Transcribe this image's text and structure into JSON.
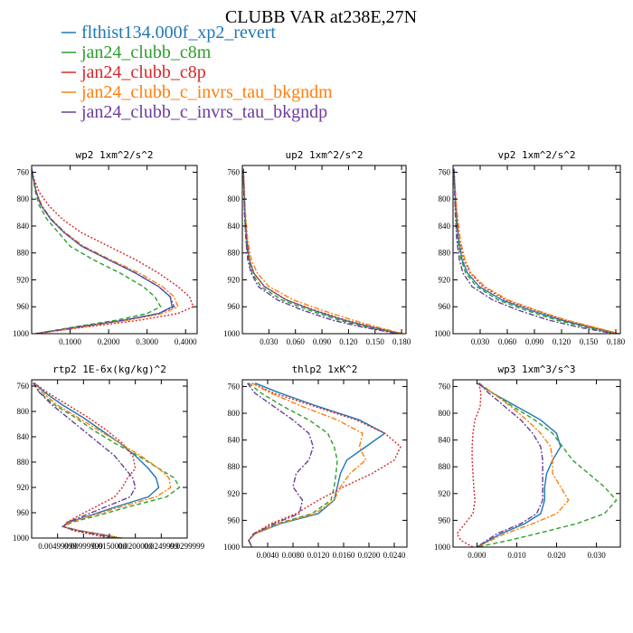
{
  "figure": {
    "title": "CLUBB VAR at238E,27N"
  },
  "legend": [
    {
      "label": "flthist134.000f_xp2_revert",
      "color": "#1f77b4"
    },
    {
      "label": "jan24_clubb_c8m",
      "color": "#2ca02c"
    },
    {
      "label": "jan24_clubb_c8p",
      "color": "#d62728"
    },
    {
      "label": "jan24_clubb_c_invrs_tau_bkgndm",
      "color": "#ff7f0e"
    },
    {
      "label": "jan24_clubb_c_invrs_tau_bkgndp",
      "color": "#6a3d9a"
    }
  ],
  "chart_data": [
    {
      "type": "line",
      "title": "wp2  1xm^2/s^2",
      "xlim": [
        0,
        0.43
      ],
      "ylim": [
        1000,
        750
      ],
      "xticks": [
        0.1,
        0.2,
        0.3,
        0.4
      ],
      "xtick_labels": [
        "0.1000",
        "0.2000",
        "0.3000",
        "0.4000"
      ],
      "yticks": [
        760,
        800,
        840,
        880,
        920,
        960,
        1000
      ],
      "y": [
        755,
        770,
        790,
        810,
        830,
        850,
        870,
        890,
        910,
        930,
        945,
        960,
        970,
        980,
        990,
        1000
      ],
      "series": [
        {
          "color": "#1f77b4",
          "dash": "solid",
          "values": [
            0,
            0.005,
            0.012,
            0.025,
            0.05,
            0.085,
            0.13,
            0.2,
            0.27,
            0.33,
            0.36,
            0.365,
            0.33,
            0.24,
            0.12,
            0.01
          ]
        },
        {
          "color": "#2ca02c",
          "dash": "dash",
          "values": [
            0,
            0.004,
            0.01,
            0.02,
            0.04,
            0.07,
            0.1,
            0.16,
            0.23,
            0.29,
            0.32,
            0.335,
            0.3,
            0.22,
            0.11,
            0.01
          ]
        },
        {
          "color": "#d62728",
          "dash": "dot",
          "values": [
            0,
            0.006,
            0.02,
            0.045,
            0.08,
            0.13,
            0.2,
            0.27,
            0.33,
            0.38,
            0.41,
            0.42,
            0.38,
            0.28,
            0.14,
            0.01
          ]
        },
        {
          "color": "#ff7f0e",
          "dash": "dashdot",
          "values": [
            0,
            0.005,
            0.013,
            0.027,
            0.052,
            0.088,
            0.135,
            0.205,
            0.28,
            0.34,
            0.37,
            0.38,
            0.34,
            0.25,
            0.13,
            0.01
          ]
        },
        {
          "color": "#6a3d9a",
          "dash": "dashdot",
          "values": [
            0,
            0.005,
            0.012,
            0.025,
            0.05,
            0.085,
            0.13,
            0.2,
            0.27,
            0.33,
            0.36,
            0.37,
            0.33,
            0.24,
            0.12,
            0.01
          ]
        }
      ]
    },
    {
      "type": "line",
      "title": "up2  1xm^2/s^2",
      "xlim": [
        0,
        0.185
      ],
      "ylim": [
        1000,
        750
      ],
      "xticks": [
        0.03,
        0.06,
        0.09,
        0.12,
        0.15,
        0.18
      ],
      "xtick_labels": [
        "0.030",
        "0.060",
        "0.090",
        "0.120",
        "0.150",
        "0.180"
      ],
      "yticks": [
        760,
        800,
        840,
        880,
        920,
        960,
        1000
      ],
      "y": [
        755,
        780,
        820,
        860,
        890,
        910,
        930,
        950,
        965,
        980,
        990,
        1000
      ],
      "series": [
        {
          "color": "#1f77b4",
          "dash": "solid",
          "values": [
            0.001,
            0.002,
            0.003,
            0.005,
            0.008,
            0.013,
            0.025,
            0.05,
            0.08,
            0.115,
            0.145,
            0.18
          ]
        },
        {
          "color": "#2ca02c",
          "dash": "dash",
          "values": [
            0.001,
            0.0015,
            0.0025,
            0.004,
            0.007,
            0.011,
            0.021,
            0.045,
            0.075,
            0.11,
            0.14,
            0.178
          ]
        },
        {
          "color": "#d62728",
          "dash": "dot",
          "values": [
            0.001,
            0.002,
            0.003,
            0.005,
            0.008,
            0.013,
            0.025,
            0.05,
            0.082,
            0.117,
            0.147,
            0.18
          ]
        },
        {
          "color": "#ff7f0e",
          "dash": "dashdot",
          "values": [
            0.001,
            0.002,
            0.0035,
            0.006,
            0.01,
            0.017,
            0.03,
            0.058,
            0.09,
            0.125,
            0.152,
            0.182
          ]
        },
        {
          "color": "#6a3d9a",
          "dash": "dashdot",
          "values": [
            0.001,
            0.0015,
            0.0025,
            0.004,
            0.006,
            0.01,
            0.018,
            0.04,
            0.068,
            0.102,
            0.135,
            0.176
          ]
        }
      ]
    },
    {
      "type": "line",
      "title": "vp2  1xm^2/s^2",
      "xlim": [
        0,
        0.185
      ],
      "ylim": [
        1000,
        750
      ],
      "xticks": [
        0.03,
        0.06,
        0.09,
        0.12,
        0.15,
        0.18
      ],
      "xtick_labels": [
        "0.030",
        "0.060",
        "0.090",
        "0.120",
        "0.150",
        "0.180"
      ],
      "yticks": [
        760,
        800,
        840,
        880,
        920,
        960,
        1000
      ],
      "y": [
        755,
        780,
        820,
        860,
        890,
        910,
        930,
        950,
        965,
        980,
        990,
        1000
      ],
      "series": [
        {
          "color": "#1f77b4",
          "dash": "solid",
          "values": [
            0.001,
            0.002,
            0.0035,
            0.006,
            0.01,
            0.016,
            0.029,
            0.054,
            0.085,
            0.12,
            0.15,
            0.182
          ]
        },
        {
          "color": "#2ca02c",
          "dash": "dash",
          "values": [
            0.001,
            0.0015,
            0.003,
            0.005,
            0.009,
            0.014,
            0.026,
            0.05,
            0.08,
            0.115,
            0.146,
            0.18
          ]
        },
        {
          "color": "#d62728",
          "dash": "dot",
          "values": [
            0.001,
            0.002,
            0.004,
            0.007,
            0.012,
            0.019,
            0.033,
            0.058,
            0.09,
            0.124,
            0.153,
            0.183
          ]
        },
        {
          "color": "#ff7f0e",
          "dash": "dashdot",
          "values": [
            0.001,
            0.002,
            0.0045,
            0.008,
            0.013,
            0.02,
            0.035,
            0.061,
            0.092,
            0.126,
            0.155,
            0.184
          ]
        },
        {
          "color": "#6a3d9a",
          "dash": "dashdot",
          "values": [
            0.001,
            0.0015,
            0.0025,
            0.004,
            0.007,
            0.011,
            0.021,
            0.044,
            0.072,
            0.106,
            0.138,
            0.178
          ]
        }
      ]
    },
    {
      "type": "line",
      "title": "rtp2  1E-6x(kg/kg)^2",
      "xlim": [
        0,
        0.03
      ],
      "ylim": [
        1000,
        750
      ],
      "xticks": [
        0.005,
        0.01,
        0.015,
        0.02,
        0.025,
        0.03
      ],
      "xtick_labels": [
        "0.00499999",
        "0.00999999",
        "0.0150000",
        "0.0200000",
        "0.0249999",
        "0.0299999"
      ],
      "yticks": [
        760,
        800,
        840,
        880,
        920,
        960,
        1000
      ],
      "y": [
        755,
        770,
        790,
        810,
        830,
        850,
        870,
        890,
        905,
        920,
        935,
        950,
        965,
        975,
        982,
        988,
        995,
        1000
      ],
      "series": [
        {
          "color": "#1f77b4",
          "dash": "solid",
          "values": [
            0.0005,
            0.0025,
            0.006,
            0.01,
            0.0135,
            0.017,
            0.02,
            0.0225,
            0.024,
            0.0245,
            0.0225,
            0.0165,
            0.011,
            0.0072,
            0.006,
            0.009,
            0.014,
            0.017
          ]
        },
        {
          "color": "#2ca02c",
          "dash": "dash",
          "values": [
            0.0003,
            0.0015,
            0.0045,
            0.0085,
            0.012,
            0.016,
            0.0205,
            0.0245,
            0.0275,
            0.0285,
            0.026,
            0.019,
            0.0125,
            0.0078,
            0.0062,
            0.009,
            0.014,
            0.017
          ]
        },
        {
          "color": "#d62728",
          "dash": "dot",
          "values": [
            0.0005,
            0.003,
            0.007,
            0.011,
            0.0145,
            0.0175,
            0.0195,
            0.02,
            0.0185,
            0.0175,
            0.016,
            0.0125,
            0.009,
            0.0068,
            0.0062,
            0.008,
            0.012,
            0.015
          ]
        },
        {
          "color": "#ff7f0e",
          "dash": "dashdot",
          "values": [
            0.0004,
            0.002,
            0.005,
            0.009,
            0.013,
            0.017,
            0.021,
            0.0245,
            0.0265,
            0.0268,
            0.024,
            0.0175,
            0.0115,
            0.0074,
            0.0061,
            0.009,
            0.014,
            0.0175
          ]
        },
        {
          "color": "#6a3d9a",
          "dash": "dashdot",
          "values": [
            0.0003,
            0.0015,
            0.004,
            0.007,
            0.01,
            0.013,
            0.016,
            0.018,
            0.0195,
            0.02,
            0.019,
            0.0145,
            0.01,
            0.007,
            0.006,
            0.0085,
            0.013,
            0.016
          ]
        }
      ]
    },
    {
      "type": "line",
      "title": "thlp2  1xK^2",
      "xlim": [
        0,
        0.026
      ],
      "ylim": [
        1000,
        750
      ],
      "xticks": [
        0.004,
        0.008,
        0.012,
        0.016,
        0.02,
        0.024
      ],
      "xtick_labels": [
        "0.0040",
        "0.0080",
        "0.0120",
        "0.0160",
        "0.0200",
        "0.0240"
      ],
      "yticks": [
        760,
        800,
        840,
        880,
        920,
        960,
        1000
      ],
      "y": [
        755,
        770,
        790,
        810,
        830,
        850,
        870,
        890,
        910,
        930,
        950,
        965,
        980,
        990,
        1000
      ],
      "series": [
        {
          "color": "#1f77b4",
          "dash": "solid",
          "values": [
            0.002,
            0.006,
            0.012,
            0.0185,
            0.0225,
            0.0195,
            0.0165,
            0.0155,
            0.015,
            0.0145,
            0.012,
            0.006,
            0.002,
            0.001,
            0.0015
          ]
        },
        {
          "color": "#2ca02c",
          "dash": "dash",
          "values": [
            0.001,
            0.003,
            0.0065,
            0.0105,
            0.0135,
            0.0145,
            0.015,
            0.0148,
            0.0145,
            0.014,
            0.011,
            0.0055,
            0.002,
            0.001,
            0.0015
          ]
        },
        {
          "color": "#d62728",
          "dash": "dot",
          "values": [
            0.0015,
            0.005,
            0.0115,
            0.018,
            0.0225,
            0.025,
            0.024,
            0.0205,
            0.016,
            0.012,
            0.0085,
            0.0045,
            0.0018,
            0.001,
            0.0015
          ]
        },
        {
          "color": "#ff7f0e",
          "dash": "dashdot",
          "values": [
            0.0015,
            0.0045,
            0.0095,
            0.015,
            0.019,
            0.0185,
            0.0195,
            0.017,
            0.0155,
            0.0145,
            0.0115,
            0.0058,
            0.002,
            0.001,
            0.0015
          ]
        },
        {
          "color": "#6a3d9a",
          "dash": "dashdot",
          "values": [
            0.0008,
            0.002,
            0.005,
            0.008,
            0.0105,
            0.0112,
            0.0105,
            0.0085,
            0.008,
            0.0095,
            0.009,
            0.005,
            0.0018,
            0.001,
            0.0015
          ]
        }
      ]
    },
    {
      "type": "line",
      "title": "wp3  1xm^3/s^3",
      "xlim": [
        -0.006,
        0.036
      ],
      "ylim": [
        1000,
        750
      ],
      "xticks": [
        0,
        0.01,
        0.02,
        0.03
      ],
      "xtick_labels": [
        "0.000",
        "0.010",
        "0.020",
        "0.030"
      ],
      "yticks": [
        760,
        800,
        840,
        880,
        920,
        960,
        1000
      ],
      "y": [
        755,
        770,
        790,
        810,
        830,
        850,
        870,
        890,
        910,
        930,
        950,
        965,
        980,
        990,
        1000
      ],
      "series": [
        {
          "color": "#1f77b4",
          "dash": "solid",
          "values": [
            0,
            0.004,
            0.01,
            0.016,
            0.02,
            0.021,
            0.019,
            0.0175,
            0.017,
            0.017,
            0.016,
            0.012,
            0.006,
            0.003,
            0
          ]
        },
        {
          "color": "#2ca02c",
          "dash": "dash",
          "values": [
            0.0005,
            0.004,
            0.009,
            0.0145,
            0.019,
            0.0215,
            0.024,
            0.028,
            0.032,
            0.035,
            0.032,
            0.025,
            0.015,
            0.008,
            0
          ]
        },
        {
          "color": "#d62728",
          "dash": "dot",
          "values": [
            0.0005,
            0.001,
            0.0008,
            -0.0005,
            -0.001,
            -0.0012,
            -0.0012,
            -0.001,
            -0.0008,
            -0.0005,
            -0.001,
            -0.003,
            -0.005,
            -0.004,
            -0.001
          ]
        },
        {
          "color": "#ff7f0e",
          "dash": "dashdot",
          "values": [
            0.0005,
            0.004,
            0.0085,
            0.0125,
            0.016,
            0.0185,
            0.019,
            0.019,
            0.021,
            0.023,
            0.02,
            0.014,
            0.007,
            0.0035,
            0
          ]
        },
        {
          "color": "#6a3d9a",
          "dash": "dashdot",
          "values": [
            0.0005,
            0.003,
            0.007,
            0.011,
            0.014,
            0.016,
            0.0165,
            0.0165,
            0.0165,
            0.0165,
            0.015,
            0.011,
            0.005,
            0.0025,
            0
          ]
        }
      ]
    }
  ]
}
